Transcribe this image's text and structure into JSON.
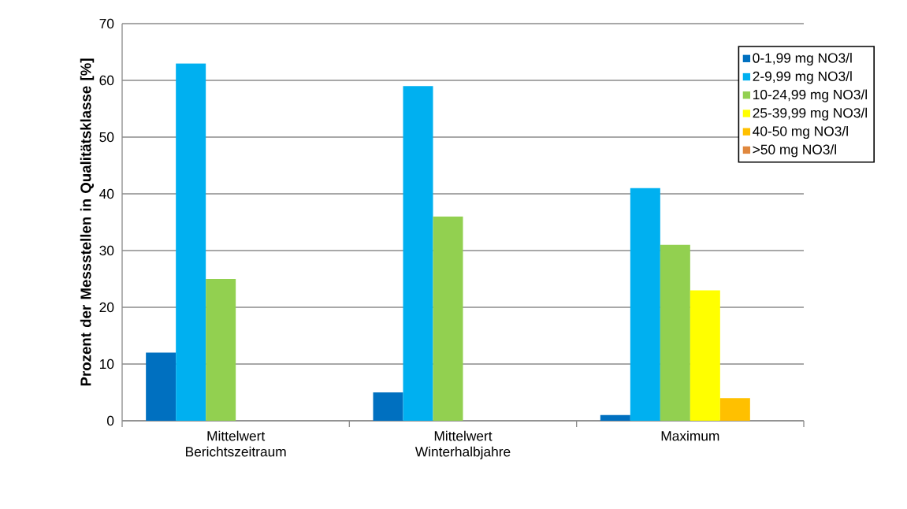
{
  "chart_data": {
    "type": "bar",
    "ylabel": "Prozent der Messstellen in Qualitätsklasse [%]",
    "categories": [
      "Mittelwert Berichtszeitraum",
      "Mittelwert Winterhalbjahre",
      "Maximum"
    ],
    "series": [
      {
        "name": "0-1,99 mg NO3/l",
        "color": "#0070c0",
        "values": [
          12,
          5,
          1
        ]
      },
      {
        "name": "2-9,99 mg NO3/l",
        "color": "#00b0f0",
        "values": [
          63,
          59,
          41
        ]
      },
      {
        "name": "10-24,99 mg NO3/l",
        "color": "#92d050",
        "values": [
          25,
          36,
          31
        ]
      },
      {
        "name": "25-39,99 mg NO3/l",
        "color": "#ffff00",
        "values": [
          0,
          0,
          23
        ]
      },
      {
        "name": "40-50 mg NO3/l",
        "color": "#ffc000",
        "values": [
          0,
          0,
          4
        ]
      },
      {
        "name": ">50 mg NO3/l",
        "color": "#e0883e",
        "values": [
          0,
          0,
          0
        ]
      }
    ],
    "ylim": [
      0,
      70
    ],
    "yticks": [
      0,
      10,
      20,
      30,
      40,
      50,
      60,
      70
    ],
    "grid": "y",
    "legend": "top right"
  }
}
